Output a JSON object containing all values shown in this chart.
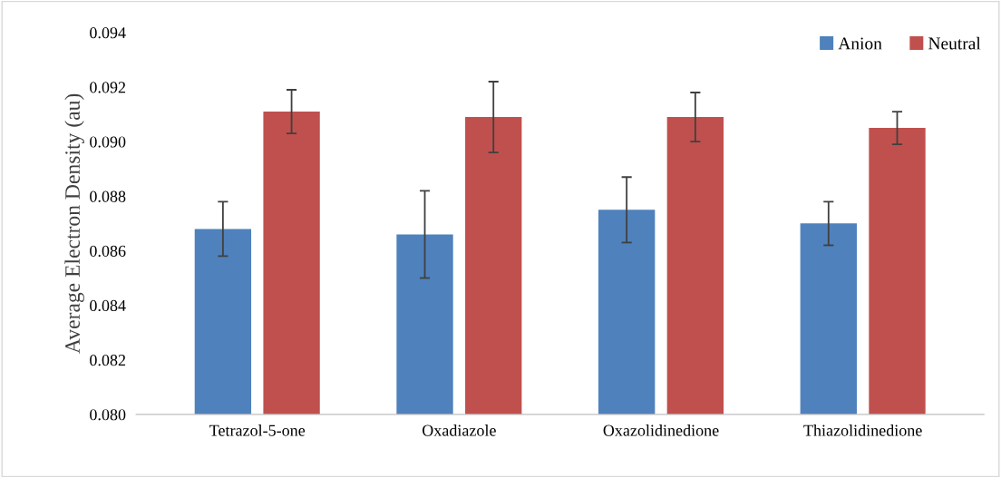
{
  "chart_data": {
    "type": "bar",
    "ylabel": "Average Electron Density (au)",
    "categories": [
      "Tetrazol-5-one",
      "Oxadiazole",
      "Oxazolidinedione",
      "Thiazolidinedione"
    ],
    "series": [
      {
        "name": "Anion",
        "color": "#4f81bd",
        "values": [
          0.0868,
          0.0866,
          0.0875,
          0.087
        ],
        "errors": [
          0.001,
          0.0016,
          0.0012,
          0.0008
        ]
      },
      {
        "name": "Neutral",
        "color": "#c0504d",
        "values": [
          0.0911,
          0.0909,
          0.0909,
          0.0905
        ],
        "errors": [
          0.0008,
          0.0013,
          0.0009,
          0.0006
        ]
      }
    ],
    "ylim": [
      0.08,
      0.094
    ],
    "yticks": [
      {
        "value": 0.08,
        "label": "0.080"
      },
      {
        "value": 0.082,
        "label": "0.082"
      },
      {
        "value": 0.084,
        "label": "0.084"
      },
      {
        "value": 0.086,
        "label": "0.086"
      },
      {
        "value": 0.088,
        "label": "0.088"
      },
      {
        "value": 0.09,
        "label": "0.090"
      },
      {
        "value": 0.092,
        "label": "0.092"
      },
      {
        "value": 0.094,
        "label": "0.094"
      }
    ],
    "legend": "top right"
  }
}
